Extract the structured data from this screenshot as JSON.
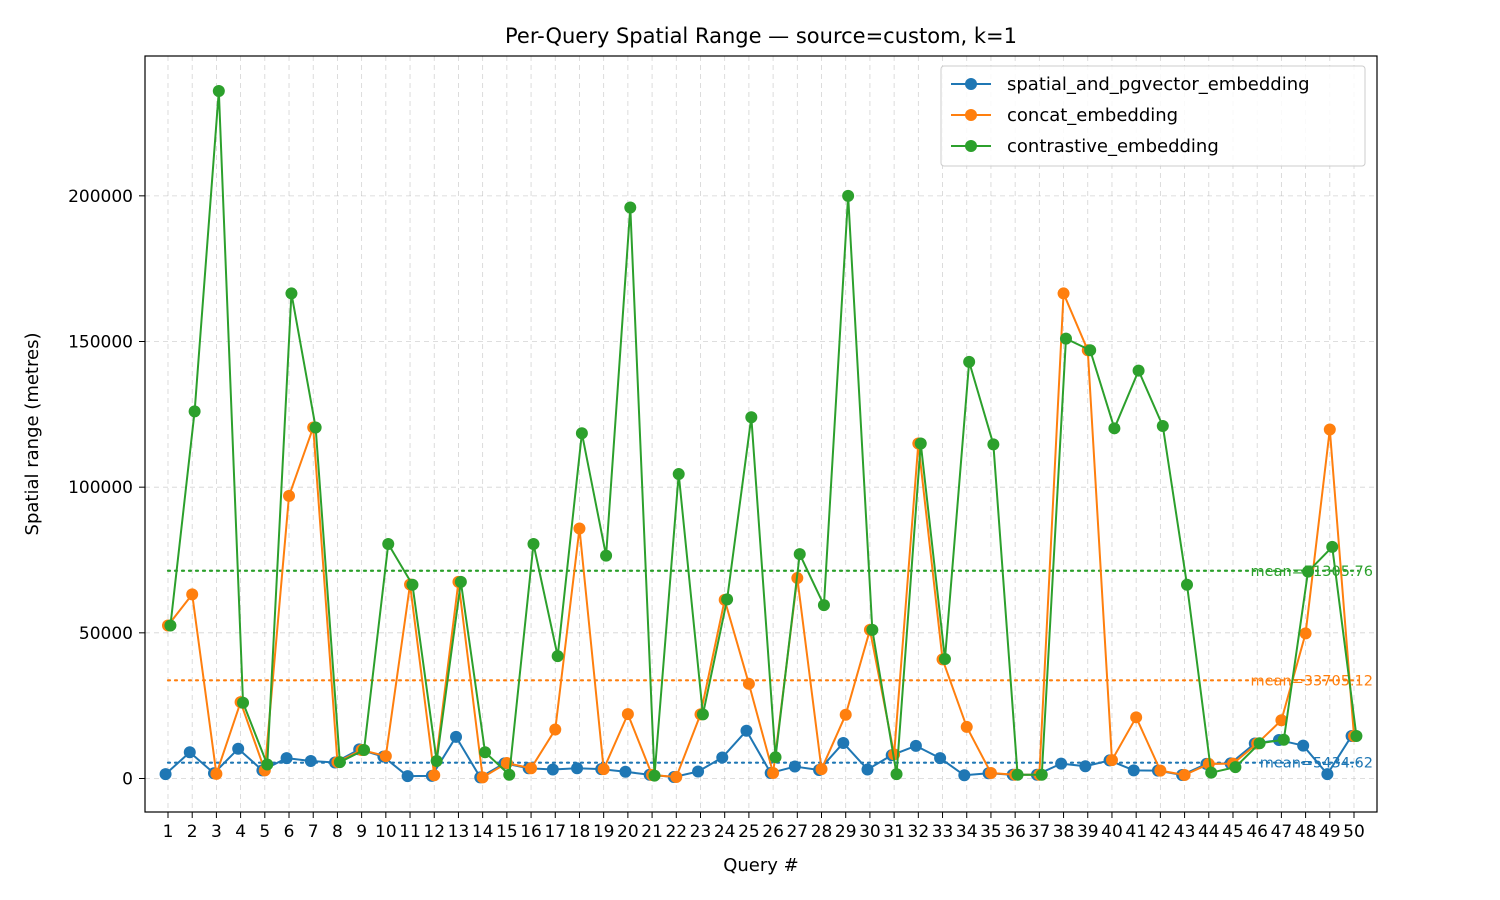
{
  "chart_data": {
    "type": "line",
    "title": "Per-Query Spatial Range — source=custom, k=1",
    "xlabel": "Query #",
    "ylabel": "Spatial range (metres)",
    "x": [
      1,
      2,
      3,
      4,
      5,
      6,
      7,
      8,
      9,
      10,
      11,
      12,
      13,
      14,
      15,
      16,
      17,
      18,
      19,
      20,
      21,
      22,
      23,
      24,
      25,
      26,
      27,
      28,
      29,
      30,
      31,
      32,
      33,
      34,
      35,
      36,
      37,
      38,
      39,
      40,
      41,
      42,
      43,
      44,
      45,
      46,
      47,
      48,
      49,
      50
    ],
    "x_tick_labels": [
      "1",
      "2",
      "3",
      "4",
      "5",
      "6",
      "7",
      "8",
      "9",
      "10",
      "11",
      "12",
      "13",
      "14",
      "15",
      "16",
      "17",
      "18",
      "19",
      "20",
      "21",
      "22",
      "23",
      "24",
      "25",
      "26",
      "27",
      "28",
      "29",
      "30",
      "31",
      "32",
      "33",
      "34",
      "35",
      "36",
      "37",
      "38",
      "39",
      "40",
      "41",
      "42",
      "43",
      "44",
      "45",
      "46",
      "47",
      "48",
      "49",
      "50"
    ],
    "y_ticks": [
      0,
      50000,
      100000,
      150000,
      200000
    ],
    "y_tick_labels": [
      "0",
      "50000",
      "100000",
      "150000",
      "200000"
    ],
    "xlim": [
      0.05,
      50.95
    ],
    "ylim": [
      -11500,
      248000
    ],
    "grid": true,
    "legend_position": "top-right",
    "series": [
      {
        "name": "spatial_and_pgvector_embedding",
        "color": "#1f77b4",
        "offset": -0.1,
        "values": [
          1500,
          9000,
          1800,
          10200,
          2800,
          7000,
          6000,
          5500,
          10000,
          7500,
          800,
          900,
          14300,
          400,
          5200,
          3500,
          3100,
          3500,
          3200,
          2300,
          1300,
          500,
          2400,
          7200,
          16400,
          1900,
          4100,
          2900,
          12200,
          3100,
          8000,
          11200,
          7000,
          1100,
          1800,
          1300,
          1300,
          5100,
          4200,
          6200,
          2800,
          2700,
          1200,
          5000,
          5200,
          12000,
          13200,
          11300,
          1500,
          14600
        ],
        "mean": 5434.62,
        "mean_label": "mean=5434.62"
      },
      {
        "name": "concat_embedding",
        "color": "#ff7f0e",
        "offset": 0,
        "values": [
          52500,
          63200,
          1600,
          26200,
          2800,
          97000,
          120500,
          5600,
          9800,
          7700,
          66600,
          1100,
          67500,
          400,
          5300,
          3500,
          16800,
          85800,
          3200,
          22100,
          1200,
          500,
          22000,
          61300,
          32500,
          1900,
          68800,
          3200,
          21900,
          51000,
          8300,
          115000,
          40900,
          17700,
          1900,
          1300,
          1300,
          166500,
          147000,
          6300,
          21000,
          2700,
          1200,
          5000,
          5100,
          12000,
          20000,
          49800,
          119800,
          14600
        ],
        "mean": 33705.12,
        "mean_label": "mean=33705.12"
      },
      {
        "name": "contrastive_embedding",
        "color": "#2ca02c",
        "offset": 0.1,
        "values": [
          52500,
          126000,
          236000,
          26000,
          4800,
          166500,
          120500,
          5600,
          9800,
          80500,
          66500,
          6000,
          67500,
          9000,
          1300,
          80500,
          42000,
          118500,
          76500,
          196000,
          1000,
          104500,
          22000,
          61500,
          124000,
          7300,
          77000,
          59500,
          200000,
          51000,
          1500,
          115000,
          41000,
          143000,
          114700,
          1300,
          1300,
          151000,
          147000,
          120200,
          140000,
          121000,
          66500,
          2000,
          3900,
          12100,
          13300,
          71000,
          79500,
          14600
        ],
        "mean": 71305.76,
        "mean_label": "mean=71305.76"
      }
    ]
  }
}
